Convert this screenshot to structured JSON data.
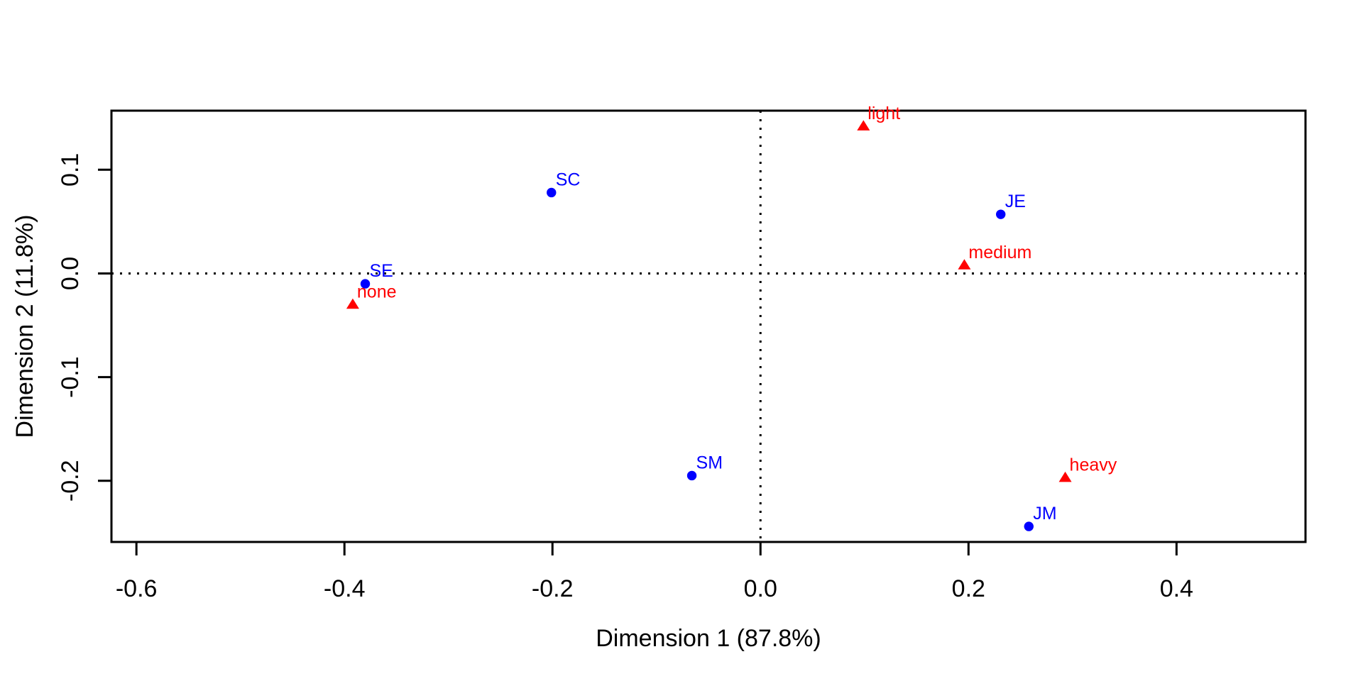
{
  "page": {
    "background": "#FFFFFF"
  },
  "chart_data": {
    "type": "scatter",
    "title": "",
    "xlabel": "Dimension 1 (87.8%)",
    "ylabel": "Dimension 2 (11.8%)",
    "xlim": [
      -0.624,
      0.524
    ],
    "ylim": [
      -0.259,
      0.157
    ],
    "grid": false,
    "axis_color": "#000000",
    "x_ticks": [
      {
        "value": -0.6,
        "label": "-0.6"
      },
      {
        "value": -0.4,
        "label": "-0.4"
      },
      {
        "value": -0.2,
        "label": "-0.2"
      },
      {
        "value": 0.0,
        "label": "0.0"
      },
      {
        "value": 0.2,
        "label": "0.2"
      },
      {
        "value": 0.4,
        "label": "0.4"
      }
    ],
    "y_ticks": [
      {
        "value": 0.1,
        "label": "0.1"
      },
      {
        "value": 0.0,
        "label": "0.0"
      },
      {
        "value": -0.1,
        "label": "-0.1"
      },
      {
        "value": -0.2,
        "label": "-0.2"
      }
    ],
    "reference_lines": [
      {
        "axis": "vertical",
        "at": 0,
        "style": "dotted",
        "color": "#000000"
      },
      {
        "axis": "horizontal",
        "at": 0,
        "style": "dotted",
        "color": "#000000"
      }
    ],
    "series": [
      {
        "name": "rows",
        "marker": "circle",
        "color": "#0000FF",
        "points": [
          {
            "label": "SC",
            "x": -0.201,
            "y": 0.078
          },
          {
            "label": "SE",
            "x": -0.38,
            "y": -0.01
          },
          {
            "label": "SM",
            "x": -0.066,
            "y": -0.195
          },
          {
            "label": "JE",
            "x": 0.231,
            "y": 0.057
          },
          {
            "label": "JM",
            "x": 0.258,
            "y": -0.244
          }
        ]
      },
      {
        "name": "columns",
        "marker": "triangle",
        "color": "#FF0000",
        "points": [
          {
            "label": "light",
            "x": 0.099,
            "y": 0.142
          },
          {
            "label": "none",
            "x": -0.392,
            "y": -0.03
          },
          {
            "label": "medium",
            "x": 0.196,
            "y": 0.008
          },
          {
            "label": "heavy",
            "x": 0.293,
            "y": -0.197
          }
        ]
      }
    ]
  }
}
